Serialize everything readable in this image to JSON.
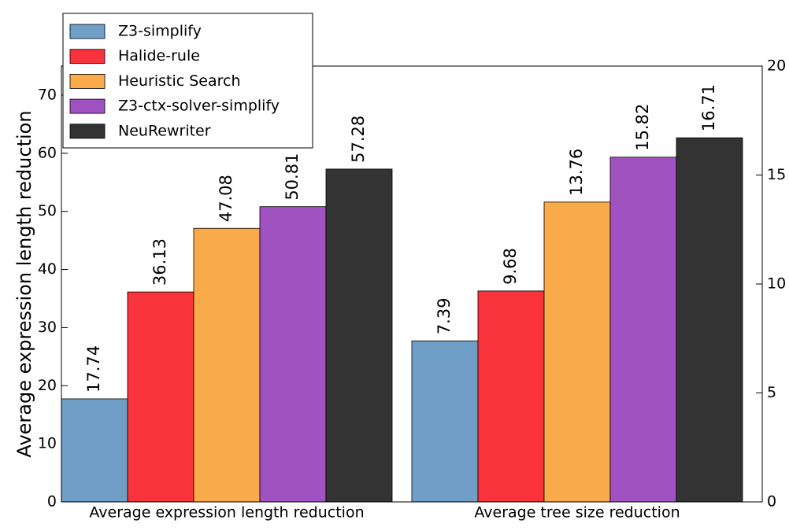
{
  "chart_data": {
    "type": "bar",
    "ylabel": "Average expression length reduction",
    "categories": [
      "Average expression length reduction",
      "Average tree size reduction"
    ],
    "category_axes": [
      "y",
      "y2"
    ],
    "series": [
      {
        "name": "Z3-simplify",
        "color": "#6f9ec6",
        "values": [
          17.74,
          7.39
        ]
      },
      {
        "name": "Halide-rule",
        "color": "#f8333c",
        "values": [
          36.13,
          9.68
        ]
      },
      {
        "name": "Heuristic Search",
        "color": "#f9aa4a",
        "values": [
          47.08,
          13.76
        ]
      },
      {
        "name": "Z3-ctx-solver-simplify",
        "color": "#a052c0",
        "values": [
          50.81,
          15.82
        ]
      },
      {
        "name": "NeuRewriter",
        "color": "#333333",
        "values": [
          57.28,
          16.71
        ]
      }
    ],
    "ylim": [
      0,
      75
    ],
    "yticks": [
      0,
      10,
      20,
      30,
      40,
      50,
      60,
      70
    ],
    "y2lim": [
      0,
      20
    ],
    "y2ticks": [
      0,
      5,
      10,
      15,
      20
    ],
    "legend": "upper left"
  }
}
